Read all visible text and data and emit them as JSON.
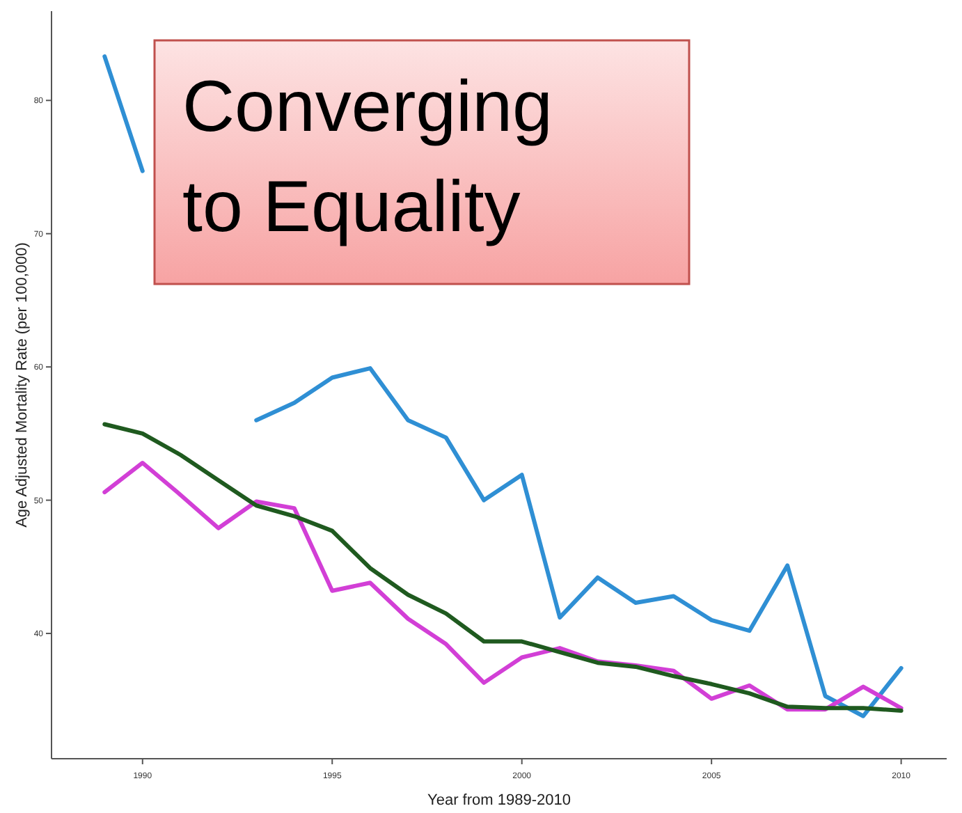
{
  "chart_data": {
    "type": "line",
    "title": "Converging to Equality",
    "xlabel": "Year from 1989-2010",
    "ylabel": "Age Adjusted Mortality Rate (per 100,000)",
    "x": [
      1989,
      1990,
      1991,
      1992,
      1993,
      1994,
      1995,
      1996,
      1997,
      1998,
      1999,
      2000,
      2001,
      2002,
      2003,
      2004,
      2005,
      2006,
      2007,
      2008,
      2009,
      2010
    ],
    "series": [
      {
        "color": "#2f8fd4",
        "values": [
          83.3,
          74.7,
          null,
          null,
          56.0,
          57.3,
          59.2,
          59.9,
          56.0,
          54.7,
          50.0,
          51.9,
          41.2,
          44.2,
          42.3,
          42.8,
          41.0,
          40.2,
          45.1,
          35.3,
          33.8,
          37.4
        ]
      },
      {
        "color": "#d23fd6",
        "values": [
          50.6,
          52.8,
          50.4,
          47.9,
          49.9,
          49.4,
          43.2,
          43.8,
          41.1,
          39.2,
          36.3,
          38.2,
          38.9,
          37.9,
          37.6,
          37.2,
          35.1,
          36.1,
          34.3,
          34.3,
          36.0,
          34.4
        ]
      },
      {
        "color": "#1f5a1f",
        "values": [
          55.7,
          55.0,
          53.4,
          51.5,
          49.6,
          48.8,
          47.7,
          44.9,
          42.9,
          41.5,
          39.4,
          39.4,
          38.6,
          37.8,
          37.5,
          36.8,
          36.2,
          35.5,
          34.5,
          34.4,
          34.4,
          34.2
        ]
      }
    ],
    "xlim": [
      1987.6,
      2011.2
    ],
    "ylim": [
      30.6,
      86.7
    ],
    "xticks": [
      1990,
      1995,
      2000,
      2005,
      2010
    ],
    "yticks": [
      40,
      50,
      60,
      70,
      80
    ],
    "grid": false,
    "marker": "none",
    "line_style": "solid"
  }
}
